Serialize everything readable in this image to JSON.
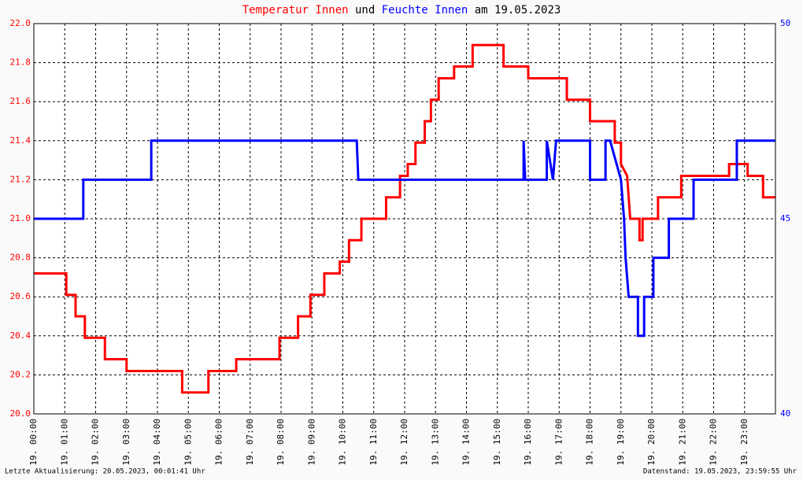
{
  "chart_data": {
    "type": "line",
    "title": [
      "Temperatur Innen",
      "und",
      "Feuchte Innen",
      "am 19.05.2023"
    ],
    "title_colors": [
      "#ff0000",
      "#000000",
      "#0000ff",
      "#000000"
    ],
    "footer_left": "Letzte Aktualisierung: 20.05.2023, 00:01:41 Uhr",
    "footer_right": "Datenstand: 19.05.2023, 23:59:55 Uhr",
    "grid": true,
    "xlim": [
      0,
      24
    ],
    "xticks": [
      {
        "value": 0,
        "label": "19. 00:00"
      },
      {
        "value": 1,
        "label": "19. 01:00"
      },
      {
        "value": 2,
        "label": "19. 02:00"
      },
      {
        "value": 3,
        "label": "19. 03:00"
      },
      {
        "value": 4,
        "label": "19. 04:00"
      },
      {
        "value": 5,
        "label": "19. 05:00"
      },
      {
        "value": 6,
        "label": "19. 06:00"
      },
      {
        "value": 7,
        "label": "19. 07:00"
      },
      {
        "value": 8,
        "label": "19. 08:00"
      },
      {
        "value": 9,
        "label": "19. 09:00"
      },
      {
        "value": 10,
        "label": "19. 10:00"
      },
      {
        "value": 11,
        "label": "19. 11:00"
      },
      {
        "value": 12,
        "label": "19. 12:00"
      },
      {
        "value": 13,
        "label": "19. 13:00"
      },
      {
        "value": 14,
        "label": "19. 14:00"
      },
      {
        "value": 15,
        "label": "19. 15:00"
      },
      {
        "value": 16,
        "label": "19. 16:00"
      },
      {
        "value": 17,
        "label": "19. 17:00"
      },
      {
        "value": 18,
        "label": "19. 18:00"
      },
      {
        "value": 19,
        "label": "19. 19:00"
      },
      {
        "value": 20,
        "label": "19. 20:00"
      },
      {
        "value": 21,
        "label": "19. 21:00"
      },
      {
        "value": 22,
        "label": "19. 22:00"
      },
      {
        "value": 23,
        "label": "19. 23:00"
      }
    ],
    "ylim": [
      20,
      22
    ],
    "yticks": [
      {
        "value": 20,
        "label": "20.0"
      },
      20.2,
      20.4,
      20.6,
      20.8,
      {
        "value": 21,
        "label": "21.0"
      },
      21.2,
      21.4,
      21.6,
      21.8,
      {
        "value": 22,
        "label": "22.0"
      }
    ],
    "y2lim": [
      40,
      50
    ],
    "y2ticks": [
      40,
      45,
      50
    ],
    "series": [
      {
        "name": "Temperatur Innen",
        "color": "#ff0000",
        "x": [
          0,
          1.05,
          1.05,
          1.35,
          1.35,
          1.65,
          1.65,
          2.3,
          2.3,
          3.0,
          3.0,
          4.8,
          4.8,
          5.65,
          5.65,
          6.55,
          6.55,
          7.95,
          7.95,
          8.55,
          8.55,
          8.95,
          8.95,
          9.4,
          9.4,
          9.9,
          9.9,
          10.2,
          10.2,
          10.6,
          10.6,
          11.4,
          11.4,
          11.85,
          11.85,
          12.1,
          12.1,
          12.35,
          12.35,
          12.65,
          12.65,
          12.85,
          12.85,
          13.1,
          13.1,
          13.6,
          13.6,
          14.2,
          14.2,
          15.2,
          15.2,
          16.0,
          16.0,
          17.25,
          17.25,
          18.0,
          18.0,
          18.8,
          18.8,
          19.0,
          19.0,
          19.2,
          19.3,
          19.6,
          19.6,
          19.7,
          19.7,
          20.2,
          20.2,
          20.95,
          20.95,
          22.5,
          22.5,
          23.1,
          23.1,
          23.6,
          23.6,
          24
        ],
        "values": [
          20.72,
          20.72,
          20.61,
          20.61,
          20.5,
          20.5,
          20.39,
          20.39,
          20.28,
          20.28,
          20.22,
          20.22,
          20.11,
          20.11,
          20.22,
          20.22,
          20.28,
          20.28,
          20.39,
          20.39,
          20.5,
          20.5,
          20.61,
          20.61,
          20.72,
          20.72,
          20.78,
          20.78,
          20.89,
          20.89,
          21.0,
          21.0,
          21.11,
          21.11,
          21.22,
          21.22,
          21.28,
          21.28,
          21.39,
          21.39,
          21.5,
          21.5,
          21.61,
          21.61,
          21.72,
          21.72,
          21.78,
          21.78,
          21.89,
          21.89,
          21.78,
          21.78,
          21.72,
          21.72,
          21.61,
          21.61,
          21.5,
          21.5,
          21.39,
          21.39,
          21.28,
          21.22,
          21.0,
          21.0,
          20.89,
          20.89,
          21.0,
          21.0,
          21.11,
          21.11,
          21.22,
          21.22,
          21.28,
          21.28,
          21.22,
          21.22,
          21.11,
          21.11
        ]
      },
      {
        "name": "Feuchte Innen",
        "color": "#0000ff",
        "axis": "y2",
        "x": [
          0,
          1.6,
          1.6,
          3.8,
          3.8,
          10.45,
          10.5,
          15.85,
          15.85,
          15.9,
          16.6,
          16.6,
          16.8,
          16.9,
          18.0,
          18.0,
          18.5,
          18.5,
          18.65,
          19.0,
          19.1,
          19.15,
          19.25,
          19.55,
          19.55,
          19.75,
          19.75,
          20.05,
          20.05,
          20.55,
          20.55,
          21.35,
          21.35,
          22.75,
          22.75,
          24
        ],
        "values": [
          45,
          45,
          46,
          46,
          47,
          47,
          46,
          46,
          47,
          46,
          46,
          47,
          46,
          47,
          47,
          46,
          46,
          47,
          47,
          46,
          45,
          44,
          43,
          43,
          42,
          42,
          43,
          43,
          44,
          44,
          45,
          45,
          46,
          46,
          47,
          47
        ]
      }
    ]
  }
}
